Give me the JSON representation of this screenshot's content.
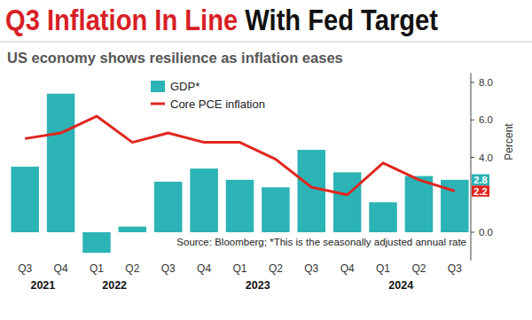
{
  "chart_data": {
    "type": "bar",
    "title": [
      "Q3 Inflation In Line",
      "With Fed Target"
    ],
    "subtitle": "US economy shows resilience as inflation eases",
    "y_label": "Percent",
    "source": "Source: Bloomberg; *This is the seasonally adjusted annual rate",
    "categories": [
      "Q3",
      "Q4",
      "Q1",
      "Q2",
      "Q3",
      "Q4",
      "Q1",
      "Q2",
      "Q3",
      "Q4",
      "Q1",
      "Q2",
      "Q3"
    ],
    "category_groups": [
      "2021",
      "2022",
      "2023",
      "2024"
    ],
    "series": [
      {
        "name": "GDP*",
        "type": "bar",
        "color": "#2bb3b5",
        "values": [
          3.5,
          7.4,
          -1.1,
          0.3,
          2.7,
          3.4,
          2.8,
          2.4,
          4.4,
          3.2,
          1.6,
          3.0,
          2.8
        ]
      },
      {
        "name": "Core PCE inflation",
        "type": "line",
        "color": "#e0261f",
        "values": [
          5.0,
          5.3,
          6.2,
          4.8,
          5.3,
          4.8,
          4.8,
          3.9,
          2.4,
          2.0,
          3.7,
          2.8,
          2.2
        ]
      }
    ],
    "annotations": [
      {
        "text": "2.8",
        "value": 2.8,
        "color": "#2bb3b5"
      },
      {
        "text": "2.2",
        "value": 2.2,
        "color": "#e0261f"
      }
    ],
    "ylim": [
      -1.5,
      8.5
    ],
    "yticks": [
      {
        "value": 0,
        "label": "0.0"
      },
      {
        "value": 4,
        "label": "4.0"
      },
      {
        "value": 6,
        "label": "6.0"
      },
      {
        "value": 8,
        "label": "8.0"
      }
    ],
    "grid": false,
    "legend": "top-left"
  }
}
